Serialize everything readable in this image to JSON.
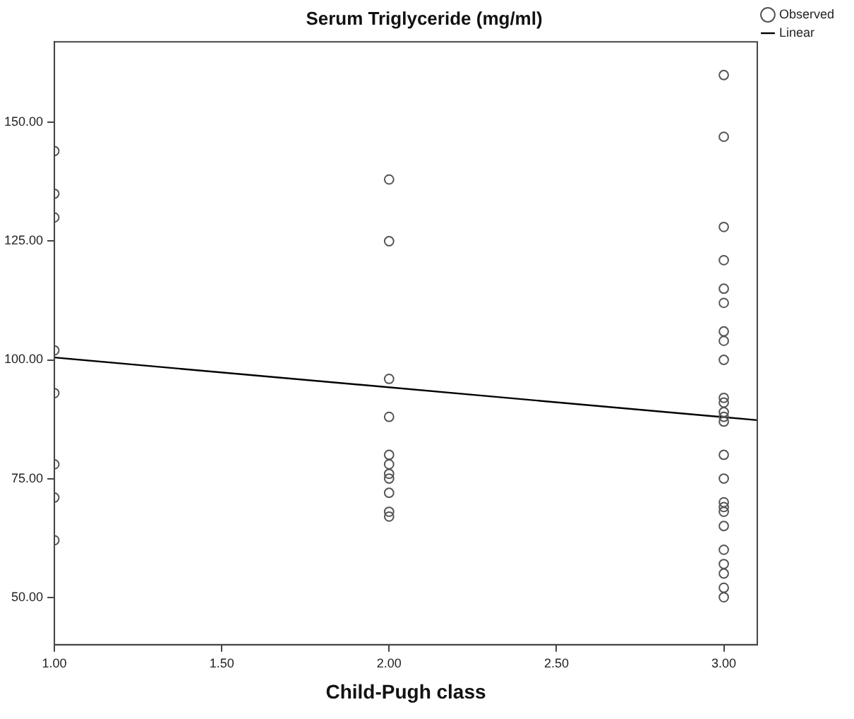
{
  "chart_data": {
    "type": "scatter",
    "title": "Serum Triglyceride (mg/ml)",
    "xlabel": "Child-Pugh class",
    "xlim": [
      1,
      3.1
    ],
    "xticks": [
      {
        "value": 1,
        "label": "1.00"
      },
      {
        "value": 1.5,
        "label": "1.50"
      },
      {
        "value": 2,
        "label": "2.00"
      },
      {
        "value": 2.5,
        "label": "2.50"
      },
      {
        "value": 3,
        "label": "3.00"
      }
    ],
    "ylim": [
      40,
      167
    ],
    "yticks": [
      {
        "value": 50,
        "label": "50.00"
      },
      {
        "value": 75,
        "label": "75.00"
      },
      {
        "value": 100,
        "label": "100.00"
      },
      {
        "value": 125,
        "label": "125.00"
      },
      {
        "value": 150,
        "label": "150.00"
      }
    ],
    "grid": false,
    "legend": "top right",
    "marker": "circle",
    "series": [
      {
        "name": "Observed",
        "type": "scatter",
        "color": "#555555",
        "x": [
          1,
          1,
          1,
          1,
          1,
          1,
          1,
          1,
          2,
          2,
          2,
          2,
          2,
          2,
          2,
          2,
          2,
          2,
          2,
          3,
          3,
          3,
          3,
          3,
          3,
          3,
          3,
          3,
          3,
          3,
          3,
          3,
          3,
          3,
          3,
          3,
          3,
          3,
          3,
          3,
          3,
          3,
          3,
          3
        ],
        "values": [
          144,
          135,
          130,
          102,
          93,
          78,
          71,
          62,
          138,
          125,
          96,
          88,
          80,
          78,
          76,
          75,
          72,
          68,
          67,
          160,
          147,
          128,
          121,
          115,
          112,
          106,
          104,
          100,
          92,
          91,
          89,
          88,
          87,
          80,
          75,
          70,
          69,
          68,
          65,
          60,
          57,
          55,
          52,
          50
        ]
      },
      {
        "name": "Linear",
        "type": "line",
        "color": "#000000",
        "marker": "none",
        "x": [
          1,
          3.1
        ],
        "values": [
          100.5,
          87.3
        ]
      }
    ]
  }
}
